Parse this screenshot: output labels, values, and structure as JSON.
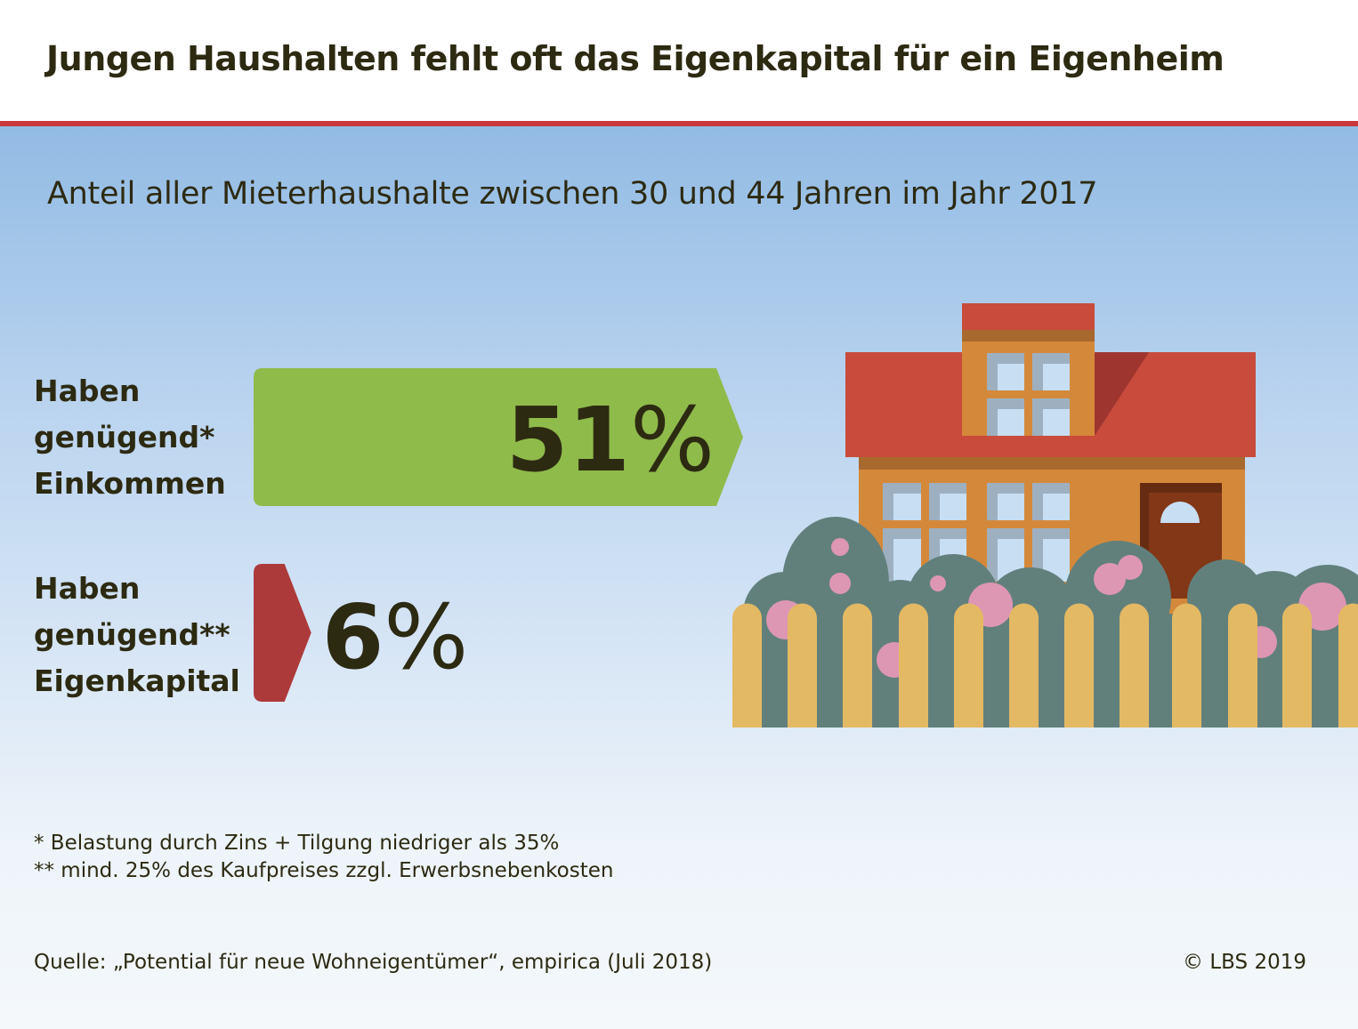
{
  "title": "Jungen Haushalten fehlt oft das Eigenkapital für ein Eigenheim",
  "subtitle": "Anteil aller Mieterhaushalte zwischen 30 und 44 Jahren im Jahr 2017",
  "chart_data": {
    "type": "bar",
    "orientation": "horizontal",
    "categories": [
      [
        "Haben",
        "genügend*",
        "Einkommen"
      ],
      [
        "Haben",
        "genügend**",
        "Eigenkapital"
      ]
    ],
    "values": [
      51,
      6
    ],
    "value_labels": [
      "51",
      "6"
    ],
    "unit": "%",
    "colors": [
      "#8fbb4b",
      "#ad3a3b"
    ],
    "xlim": [
      0,
      51
    ]
  },
  "footnotes": [
    "*  Belastung durch Zins + Tilgung niedriger als 35%",
    "**  mind. 25% des Kaufpreises zzgl. Erwerbsnebenkosten"
  ],
  "source": "Quelle: „Potential für neue Wohneigentümer“, empirica (Juli 2018)",
  "copyright": "© LBS 2019",
  "colors": {
    "accent_red": "#c9373b",
    "text": "#2d2a12"
  }
}
